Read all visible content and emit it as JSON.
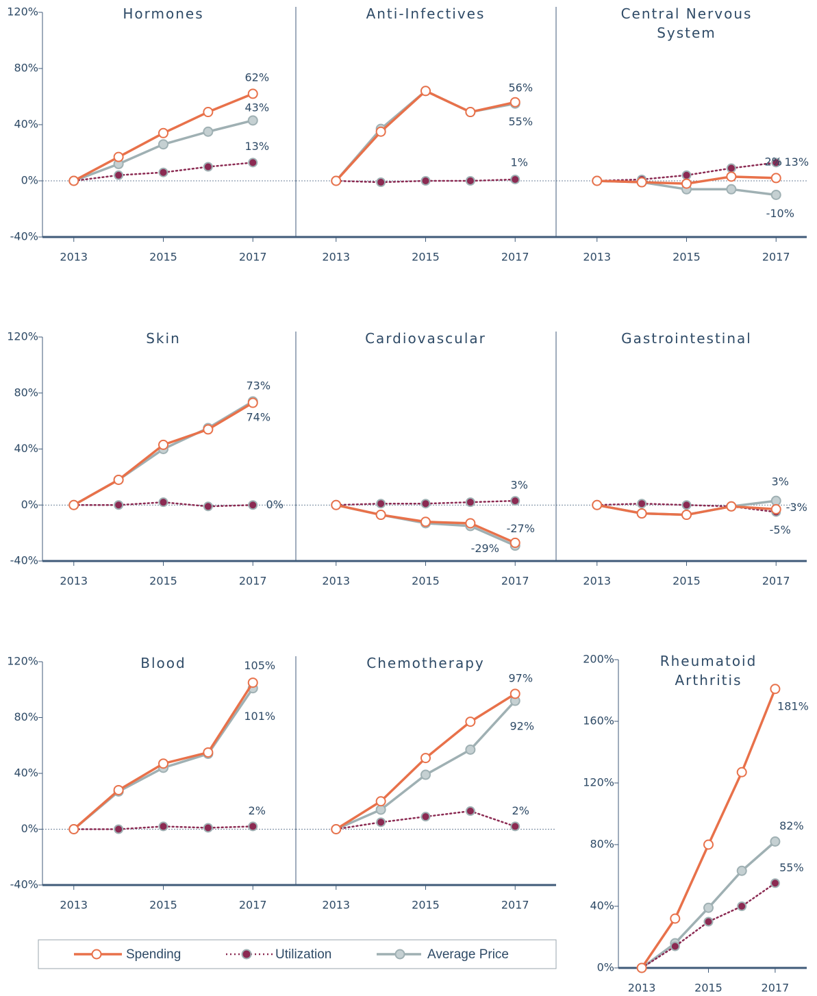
{
  "chart_data": [
    {
      "type": "line",
      "title": "Hormones",
      "x": [
        2013,
        2014,
        2015,
        2016,
        2017
      ],
      "xlim": [
        2012.3,
        2017.7
      ],
      "xticks": [
        2013,
        2015,
        2017
      ],
      "ylim": [
        -40,
        120
      ],
      "yticks": [
        {
          "value": -40,
          "label": "-40%"
        },
        {
          "value": 0,
          "label": "0%"
        },
        {
          "value": 40,
          "label": "40%"
        },
        {
          "value": 80,
          "label": "80%"
        },
        {
          "value": 120,
          "label": "120%"
        }
      ],
      "series": [
        {
          "name": "Spending",
          "color": "#e8714a",
          "values": [
            0,
            17,
            34,
            49,
            62
          ],
          "value_labels": [
            null,
            null,
            null,
            null,
            "62%"
          ]
        },
        {
          "name": "Utilization",
          "color": "#8b2a52",
          "values": [
            0,
            4,
            6,
            10,
            13
          ],
          "value_labels": [
            null,
            null,
            null,
            null,
            "13%"
          ]
        },
        {
          "name": "Average Price",
          "color": "#9fb0b3",
          "values": [
            0,
            12,
            26,
            35,
            43
          ],
          "value_labels": [
            null,
            null,
            null,
            null,
            "43%"
          ]
        }
      ]
    },
    {
      "type": "line",
      "title": "Anti-Infectives",
      "x": [
        2013,
        2014,
        2015,
        2016,
        2017
      ],
      "xlim": [
        2012.3,
        2017.7
      ],
      "xticks": [
        2013,
        2015,
        2017
      ],
      "ylim": [
        -40,
        120
      ],
      "series": [
        {
          "name": "Spending",
          "color": "#e8714a",
          "values": [
            0,
            35,
            64,
            49,
            56
          ],
          "value_labels": [
            null,
            null,
            null,
            null,
            "56%"
          ]
        },
        {
          "name": "Utilization",
          "color": "#8b2a52",
          "values": [
            0,
            -1,
            0,
            0,
            1
          ],
          "value_labels": [
            null,
            null,
            null,
            null,
            "1%"
          ]
        },
        {
          "name": "Average Price",
          "color": "#9fb0b3",
          "values": [
            0,
            37,
            64,
            49,
            55
          ],
          "value_labels": [
            null,
            null,
            null,
            null,
            "55%"
          ]
        }
      ]
    },
    {
      "type": "line",
      "title": "Central Nervous System",
      "x": [
        2013,
        2014,
        2015,
        2016,
        2017
      ],
      "xlim": [
        2012.3,
        2017.7
      ],
      "xticks": [
        2013,
        2015,
        2017
      ],
      "ylim": [
        -40,
        120
      ],
      "series": [
        {
          "name": "Spending",
          "color": "#e8714a",
          "values": [
            0,
            -1,
            -2,
            3,
            2
          ],
          "value_labels": [
            null,
            null,
            null,
            null,
            "2%"
          ]
        },
        {
          "name": "Utilization",
          "color": "#8b2a52",
          "values": [
            0,
            1,
            4,
            9,
            13
          ],
          "value_labels": [
            null,
            null,
            null,
            null,
            "13%"
          ]
        },
        {
          "name": "Average Price",
          "color": "#9fb0b3",
          "values": [
            0,
            -1,
            -6,
            -6,
            -10
          ],
          "value_labels": [
            null,
            null,
            null,
            null,
            "-10%"
          ]
        }
      ]
    },
    {
      "type": "line",
      "title": "Skin",
      "x": [
        2013,
        2014,
        2015,
        2016,
        2017
      ],
      "xlim": [
        2012.3,
        2017.7
      ],
      "xticks": [
        2013,
        2015,
        2017
      ],
      "ylim": [
        -40,
        120
      ],
      "yticks": [
        {
          "value": -40,
          "label": "-40%"
        },
        {
          "value": 0,
          "label": "0%"
        },
        {
          "value": 40,
          "label": "40%"
        },
        {
          "value": 80,
          "label": "80%"
        },
        {
          "value": 120,
          "label": "120%"
        }
      ],
      "series": [
        {
          "name": "Spending",
          "color": "#e8714a",
          "values": [
            0,
            18,
            43,
            54,
            73
          ],
          "value_labels": [
            null,
            null,
            null,
            null,
            "73%"
          ]
        },
        {
          "name": "Utilization",
          "color": "#8b2a52",
          "values": [
            0,
            0,
            2,
            -1,
            0
          ],
          "value_labels": [
            null,
            null,
            null,
            null,
            "0%"
          ]
        },
        {
          "name": "Average Price",
          "color": "#9fb0b3",
          "values": [
            0,
            18,
            40,
            55,
            74
          ],
          "value_labels": [
            null,
            null,
            null,
            null,
            "74%"
          ]
        }
      ]
    },
    {
      "type": "line",
      "title": "Cardiovascular",
      "x": [
        2013,
        2014,
        2015,
        2016,
        2017
      ],
      "xlim": [
        2012.3,
        2017.7
      ],
      "xticks": [
        2013,
        2015,
        2017
      ],
      "ylim": [
        -40,
        120
      ],
      "series": [
        {
          "name": "Spending",
          "color": "#e8714a",
          "values": [
            0,
            -7,
            -12,
            -13,
            -27
          ],
          "value_labels": [
            null,
            null,
            null,
            null,
            "-27%"
          ]
        },
        {
          "name": "Utilization",
          "color": "#8b2a52",
          "values": [
            0,
            1,
            1,
            2,
            3
          ],
          "value_labels": [
            null,
            null,
            null,
            null,
            "3%"
          ]
        },
        {
          "name": "Average Price",
          "color": "#9fb0b3",
          "values": [
            0,
            -7,
            -13,
            -15,
            -29
          ],
          "value_labels": [
            null,
            null,
            null,
            null,
            "-29%"
          ]
        }
      ]
    },
    {
      "type": "line",
      "title": "Gastrointestinal",
      "x": [
        2013,
        2014,
        2015,
        2016,
        2017
      ],
      "xlim": [
        2012.3,
        2017.7
      ],
      "xticks": [
        2013,
        2015,
        2017
      ],
      "ylim": [
        -40,
        120
      ],
      "series": [
        {
          "name": "Spending",
          "color": "#e8714a",
          "values": [
            0,
            -6,
            -7,
            -1,
            -3
          ],
          "value_labels": [
            null,
            null,
            null,
            null,
            "-3%"
          ]
        },
        {
          "name": "Utilization",
          "color": "#8b2a52",
          "values": [
            0,
            1,
            0,
            -1,
            -5
          ],
          "value_labels": [
            null,
            null,
            null,
            null,
            "-5%"
          ]
        },
        {
          "name": "Average Price",
          "color": "#9fb0b3",
          "values": [
            0,
            -6,
            -7,
            -1,
            3
          ],
          "value_labels": [
            null,
            null,
            null,
            null,
            "3%"
          ]
        }
      ]
    },
    {
      "type": "line",
      "title": "Blood",
      "x": [
        2013,
        2014,
        2015,
        2016,
        2017
      ],
      "xlim": [
        2012.3,
        2017.7
      ],
      "xticks": [
        2013,
        2015,
        2017
      ],
      "ylim": [
        -40,
        120
      ],
      "yticks": [
        {
          "value": -40,
          "label": "-40%"
        },
        {
          "value": 0,
          "label": "0%"
        },
        {
          "value": 40,
          "label": "40%"
        },
        {
          "value": 80,
          "label": "80%"
        },
        {
          "value": 120,
          "label": "120%"
        }
      ],
      "series": [
        {
          "name": "Spending",
          "color": "#e8714a",
          "values": [
            0,
            28,
            47,
            55,
            105
          ],
          "value_labels": [
            null,
            null,
            null,
            null,
            "105%"
          ]
        },
        {
          "name": "Utilization",
          "color": "#8b2a52",
          "values": [
            0,
            0,
            2,
            1,
            2
          ],
          "value_labels": [
            null,
            null,
            null,
            null,
            "2%"
          ]
        },
        {
          "name": "Average Price",
          "color": "#9fb0b3",
          "values": [
            0,
            27,
            44,
            54,
            101
          ],
          "value_labels": [
            null,
            null,
            null,
            null,
            "101%"
          ]
        }
      ]
    },
    {
      "type": "line",
      "title": "Chemotherapy",
      "x": [
        2013,
        2014,
        2015,
        2016,
        2017
      ],
      "xlim": [
        2012.3,
        2017.7
      ],
      "xticks": [
        2013,
        2015,
        2017
      ],
      "ylim": [
        -40,
        120
      ],
      "series": [
        {
          "name": "Spending",
          "color": "#e8714a",
          "values": [
            0,
            20,
            51,
            77,
            97
          ],
          "value_labels": [
            null,
            null,
            null,
            null,
            "97%"
          ]
        },
        {
          "name": "Utilization",
          "color": "#8b2a52",
          "values": [
            0,
            5,
            9,
            13,
            2
          ],
          "value_labels": [
            null,
            null,
            null,
            null,
            "2%"
          ]
        },
        {
          "name": "Average Price",
          "color": "#9fb0b3",
          "values": [
            0,
            14,
            39,
            57,
            92
          ],
          "value_labels": [
            null,
            null,
            null,
            null,
            "92%"
          ]
        }
      ]
    },
    {
      "type": "line",
      "title": "Rheumatoid Arthritis",
      "x": [
        2013,
        2014,
        2015,
        2016,
        2017
      ],
      "xlim": [
        2012.3,
        2017.7
      ],
      "xticks": [
        2013,
        2015,
        2017
      ],
      "ylim": [
        0,
        200
      ],
      "yticks": [
        {
          "value": 0,
          "label": "0%"
        },
        {
          "value": 40,
          "label": "40%"
        },
        {
          "value": 80,
          "label": "80%"
        },
        {
          "value": 120,
          "label": "120%"
        },
        {
          "value": 160,
          "label": "160%"
        },
        {
          "value": 200,
          "label": "200%"
        }
      ],
      "series": [
        {
          "name": "Spending",
          "color": "#e8714a",
          "values": [
            0,
            32,
            80,
            127,
            181
          ],
          "value_labels": [
            null,
            null,
            null,
            null,
            "181%"
          ]
        },
        {
          "name": "Utilization",
          "color": "#8b2a52",
          "values": [
            0,
            14,
            30,
            40,
            55
          ],
          "value_labels": [
            null,
            null,
            null,
            null,
            "55%"
          ]
        },
        {
          "name": "Average Price",
          "color": "#9fb0b3",
          "values": [
            0,
            16,
            39,
            63,
            82
          ],
          "value_labels": [
            null,
            null,
            null,
            null,
            "82%"
          ]
        }
      ]
    }
  ]
}
